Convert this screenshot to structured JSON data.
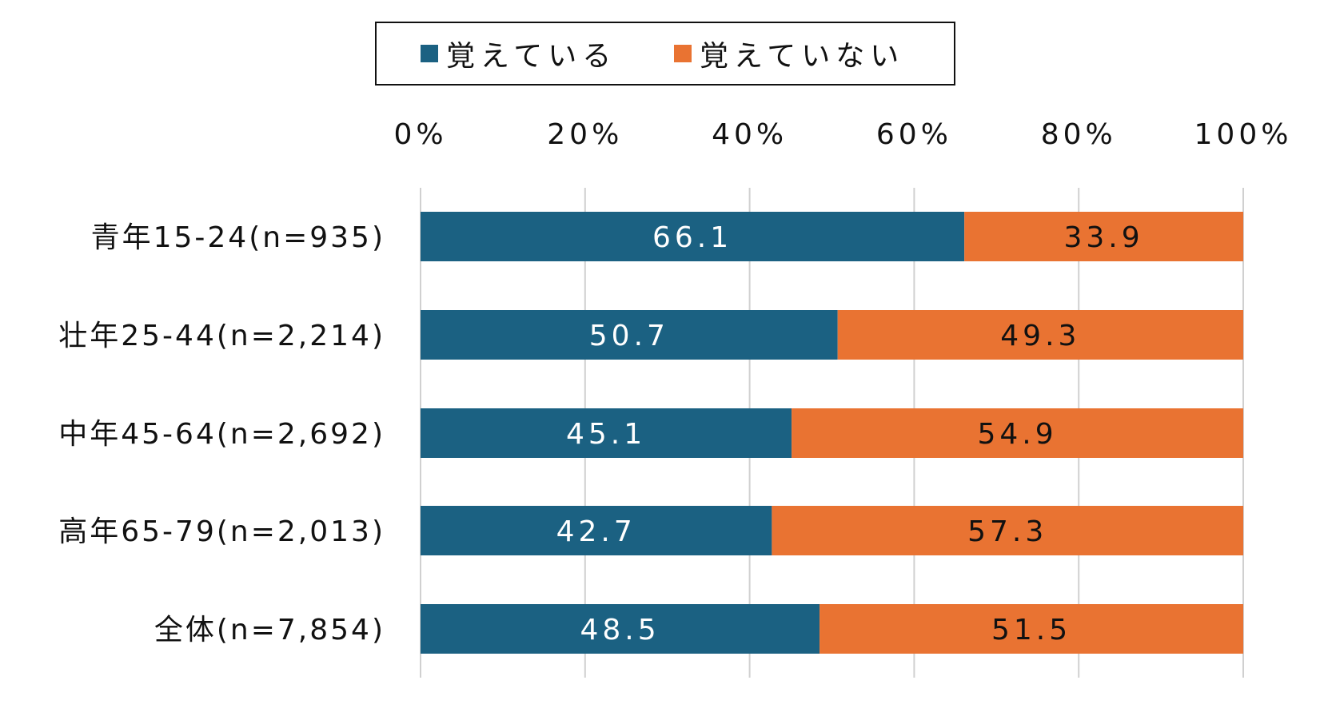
{
  "chart_data": {
    "type": "bar",
    "orientation": "horizontal",
    "stacked": true,
    "percent": true,
    "categories": [
      "青年15-24(n=935)",
      "壮年25-44(n=2,214)",
      "中年45-64(n=2,692)",
      "高年65-79(n=2,013)",
      "全体(n=7,854)"
    ],
    "series": [
      {
        "name": "覚えている",
        "color": "#1b6182",
        "values": [
          66.1,
          50.7,
          45.1,
          42.7,
          48.5
        ],
        "labels": [
          "66.1",
          "50.7",
          "45.1",
          "42.7",
          "48.5"
        ]
      },
      {
        "name": "覚えていない",
        "color": "#e97332",
        "values": [
          33.9,
          49.3,
          54.9,
          57.3,
          51.5
        ],
        "labels": [
          "33.9",
          "49.3",
          "54.9",
          "57.3",
          "51.5"
        ]
      }
    ],
    "x_ticks": [
      "0%",
      "20%",
      "40%",
      "60%",
      "80%",
      "100%"
    ],
    "xlim": [
      0,
      100
    ],
    "x_axis_position": "top",
    "grid": true,
    "legend_position": "top"
  }
}
